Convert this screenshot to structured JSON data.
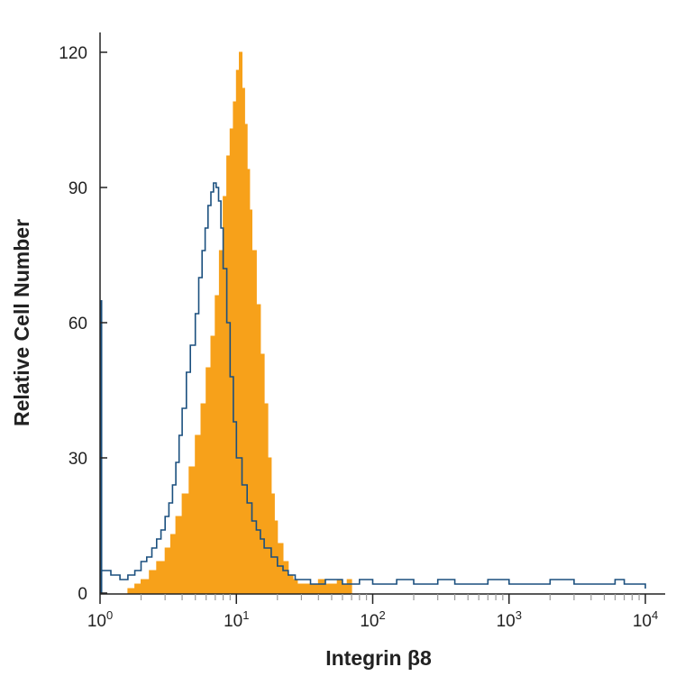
{
  "chart_data": {
    "type": "area",
    "xlabel": "Integrin β8",
    "ylabel": "Relative Cell Number",
    "x_scale": "log",
    "xlim": [
      1,
      10000
    ],
    "ylim": [
      0,
      120
    ],
    "y_ticks": [
      0,
      30,
      60,
      90,
      120
    ],
    "x_ticks": [
      {
        "value": 1,
        "base": "10",
        "exp": "0"
      },
      {
        "value": 10,
        "base": "10",
        "exp": "1"
      },
      {
        "value": 100,
        "base": "10",
        "exp": "2"
      },
      {
        "value": 1000,
        "base": "10",
        "exp": "3"
      },
      {
        "value": 10000,
        "base": "10",
        "exp": "4"
      }
    ],
    "grid": false,
    "series": [
      {
        "style": "filled",
        "color": "#f7a11a",
        "x": [
          1.6,
          1.8,
          2.0,
          2.3,
          2.6,
          3.0,
          3.3,
          3.6,
          4.0,
          4.5,
          5.0,
          5.5,
          6.0,
          6.5,
          7.0,
          7.5,
          8.0,
          8.5,
          9.0,
          9.5,
          10.0,
          10.5,
          11.0,
          11.5,
          12.0,
          12.5,
          13.0,
          14.0,
          15.0,
          16.0,
          17.0,
          18.0,
          19.0,
          20.0,
          22.0,
          24.0,
          26.0,
          28.0,
          32.0,
          36.0,
          40.0,
          45.0,
          50.0,
          55.0,
          60.0,
          65.0,
          70.0
        ],
        "y": [
          1,
          2,
          3,
          5,
          7,
          10,
          13,
          17,
          22,
          28,
          35,
          42,
          50,
          57,
          66,
          76,
          88,
          97,
          103,
          109,
          116,
          120,
          112,
          104,
          94,
          85,
          76,
          64,
          53,
          42,
          30,
          22,
          16,
          11,
          7,
          4,
          3,
          2,
          2,
          2,
          3,
          2,
          2,
          3,
          2,
          3,
          0
        ]
      },
      {
        "style": "outline",
        "color": "#1a4f7e",
        "x": [
          1.0,
          1.2,
          1.4,
          1.6,
          1.8,
          2.0,
          2.2,
          2.4,
          2.6,
          2.8,
          3.0,
          3.2,
          3.4,
          3.6,
          3.8,
          4.0,
          4.3,
          4.6,
          5.0,
          5.3,
          5.6,
          5.9,
          6.2,
          6.5,
          6.8,
          7.1,
          7.4,
          7.7,
          8.0,
          8.5,
          9.0,
          9.5,
          10.0,
          11.0,
          12.0,
          13.0,
          14.0,
          15.0,
          16.0,
          18.0,
          20.0,
          22.0,
          24.0,
          27.0,
          30.0,
          35.0,
          40.0,
          45.0,
          50.0,
          60.0,
          80.0,
          100.0,
          150.0,
          200.0,
          250.0,
          300.0,
          400.0,
          500.0,
          700.0,
          1000.0,
          1500.0,
          2000.0,
          3000.0,
          4000.0,
          5000.0,
          6000.0,
          7000.0,
          8000.0,
          9000.0,
          10000.0
        ],
        "y": [
          5,
          4,
          3,
          4,
          5,
          7,
          8,
          10,
          12,
          14,
          17,
          20,
          24,
          29,
          35,
          41,
          49,
          55,
          62,
          70,
          76,
          81,
          86,
          89,
          91,
          90,
          87,
          81,
          72,
          60,
          48,
          38,
          30,
          24,
          20,
          16,
          14,
          12,
          10,
          8,
          6,
          5,
          4,
          3,
          3,
          2,
          2,
          3,
          3,
          2,
          3,
          2,
          3,
          2,
          2,
          3,
          2,
          2,
          3,
          2,
          2,
          3,
          2,
          2,
          2,
          3,
          2,
          2,
          2,
          1
        ]
      }
    ],
    "spike": {
      "x": 1.0,
      "y": 65,
      "color": "#1a4f7e"
    }
  }
}
